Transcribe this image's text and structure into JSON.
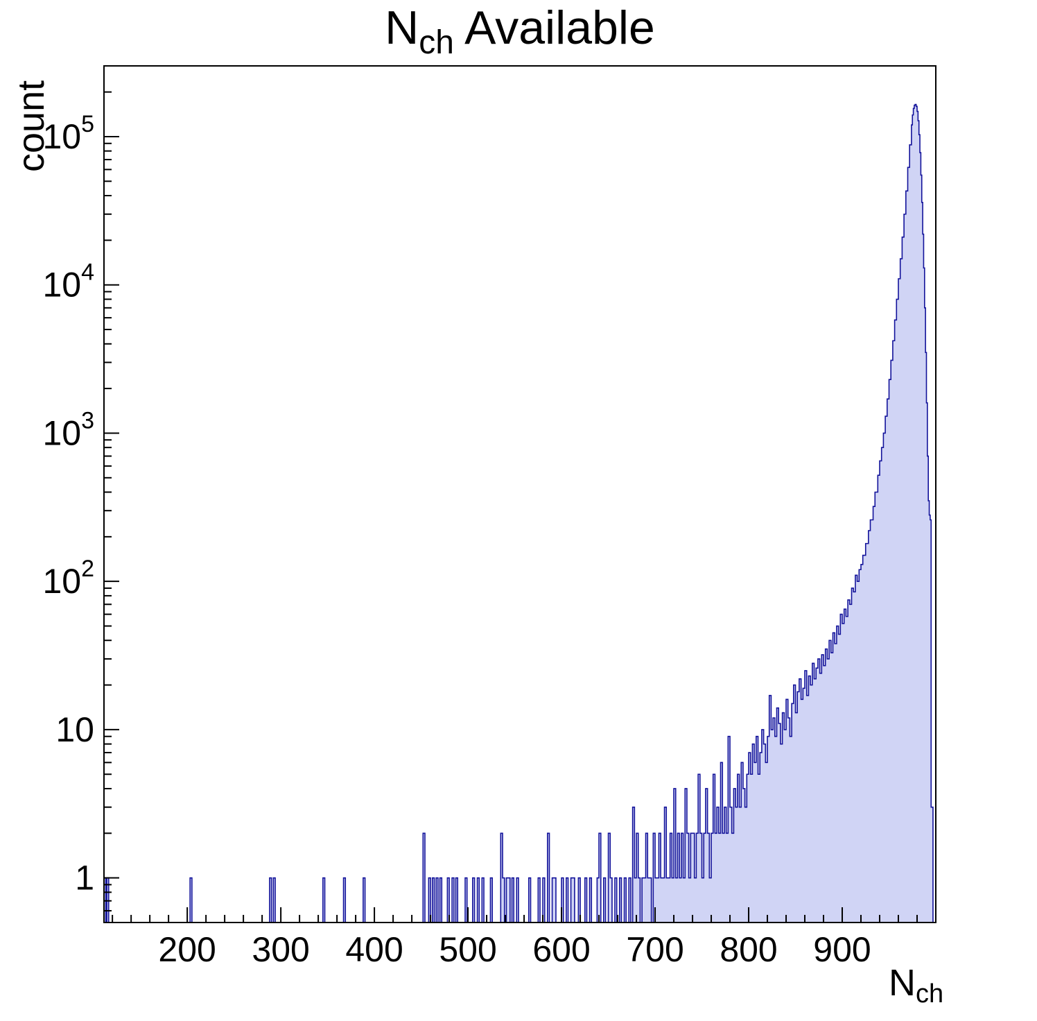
{
  "title": {
    "main": "N",
    "sub": "ch",
    "rest": " Available"
  },
  "axis_labels": {
    "y": "count",
    "x_main": "N",
    "x_sub": "ch"
  },
  "colors": {
    "fill": "#d0d4f5",
    "line": "#12129a",
    "axis": "#000000",
    "background": "#ffffff"
  },
  "chart_data": {
    "type": "bar",
    "title": "N_ch Available",
    "xlabel": "N_ch",
    "ylabel": "count",
    "x_range": [
      111,
      1000
    ],
    "y_range": [
      0.5,
      300000
    ],
    "y_scale": "log",
    "grid": false,
    "legend": "none",
    "x_major_ticks": [
      200,
      300,
      400,
      500,
      600,
      700,
      800,
      900
    ],
    "x_minor_step": 20,
    "y_major_ticks": [
      {
        "value": 1,
        "label": "1"
      },
      {
        "value": 10,
        "label": "10"
      },
      {
        "value": 100,
        "label": "10",
        "exp": "2"
      },
      {
        "value": 1000,
        "label": "10",
        "exp": "3"
      },
      {
        "value": 10000,
        "label": "10",
        "exp": "4"
      },
      {
        "value": 100000,
        "label": "10",
        "exp": "5"
      }
    ],
    "peak": {
      "x": 978,
      "count": 165000
    },
    "bins": [
      [
        111,
        1
      ],
      [
        113,
        0
      ],
      [
        114,
        1
      ],
      [
        116,
        0
      ],
      [
        203,
        1
      ],
      [
        205,
        0
      ],
      [
        288,
        1
      ],
      [
        290,
        0
      ],
      [
        292,
        1
      ],
      [
        294,
        0
      ],
      [
        345,
        1
      ],
      [
        347,
        0
      ],
      [
        367,
        1
      ],
      [
        369,
        0
      ],
      [
        388,
        1
      ],
      [
        390,
        0
      ],
      [
        452,
        2
      ],
      [
        454,
        0
      ],
      [
        458,
        1
      ],
      [
        460,
        0
      ],
      [
        462,
        1
      ],
      [
        464,
        0
      ],
      [
        466,
        1
      ],
      [
        468,
        0
      ],
      [
        470,
        1
      ],
      [
        472,
        0
      ],
      [
        478,
        1
      ],
      [
        480,
        0
      ],
      [
        483,
        1
      ],
      [
        485,
        0
      ],
      [
        487,
        1
      ],
      [
        489,
        0
      ],
      [
        497,
        1
      ],
      [
        499,
        0
      ],
      [
        505,
        1
      ],
      [
        507,
        0
      ],
      [
        510,
        1
      ],
      [
        512,
        0
      ],
      [
        515,
        1
      ],
      [
        517,
        0
      ],
      [
        524,
        1
      ],
      [
        526,
        0
      ],
      [
        535,
        2
      ],
      [
        537,
        1
      ],
      [
        539,
        0
      ],
      [
        541,
        1
      ],
      [
        543,
        1
      ],
      [
        545,
        0
      ],
      [
        547,
        1
      ],
      [
        549,
        0
      ],
      [
        552,
        1
      ],
      [
        554,
        0
      ],
      [
        565,
        1
      ],
      [
        567,
        0
      ],
      [
        575,
        1
      ],
      [
        577,
        0
      ],
      [
        580,
        1
      ],
      [
        582,
        0
      ],
      [
        585,
        2
      ],
      [
        587,
        0
      ],
      [
        590,
        1
      ],
      [
        592,
        1
      ],
      [
        594,
        0
      ],
      [
        600,
        1
      ],
      [
        602,
        0
      ],
      [
        605,
        1
      ],
      [
        607,
        0
      ],
      [
        610,
        1
      ],
      [
        612,
        1
      ],
      [
        614,
        0
      ],
      [
        618,
        1
      ],
      [
        620,
        0
      ],
      [
        625,
        1
      ],
      [
        627,
        0
      ],
      [
        630,
        1
      ],
      [
        632,
        0
      ],
      [
        638,
        1
      ],
      [
        640,
        2
      ],
      [
        642,
        0
      ],
      [
        645,
        1
      ],
      [
        647,
        0
      ],
      [
        650,
        2
      ],
      [
        652,
        1
      ],
      [
        654,
        0
      ],
      [
        657,
        1
      ],
      [
        659,
        0
      ],
      [
        662,
        1
      ],
      [
        664,
        0
      ],
      [
        667,
        1
      ],
      [
        669,
        0
      ],
      [
        672,
        1
      ],
      [
        674,
        0
      ],
      [
        676,
        3
      ],
      [
        678,
        1
      ],
      [
        680,
        2
      ],
      [
        682,
        1
      ],
      [
        684,
        0
      ],
      [
        686,
        1
      ],
      [
        688,
        1
      ],
      [
        690,
        2
      ],
      [
        692,
        1
      ],
      [
        694,
        1
      ],
      [
        696,
        0
      ],
      [
        698,
        2
      ],
      [
        700,
        1
      ],
      [
        702,
        1
      ],
      [
        704,
        2
      ],
      [
        706,
        1
      ],
      [
        708,
        1
      ],
      [
        710,
        3
      ],
      [
        712,
        1
      ],
      [
        714,
        1
      ],
      [
        716,
        2
      ],
      [
        718,
        1
      ],
      [
        720,
        4
      ],
      [
        722,
        1
      ],
      [
        724,
        2
      ],
      [
        726,
        1
      ],
      [
        728,
        2
      ],
      [
        730,
        1
      ],
      [
        732,
        4
      ],
      [
        734,
        2
      ],
      [
        736,
        1
      ],
      [
        738,
        2
      ],
      [
        740,
        2
      ],
      [
        742,
        1
      ],
      [
        744,
        2
      ],
      [
        746,
        5
      ],
      [
        748,
        2
      ],
      [
        750,
        1
      ],
      [
        752,
        2
      ],
      [
        754,
        4
      ],
      [
        756,
        2
      ],
      [
        758,
        1
      ],
      [
        760,
        2
      ],
      [
        762,
        5
      ],
      [
        764,
        2
      ],
      [
        766,
        3
      ],
      [
        768,
        2
      ],
      [
        770,
        6
      ],
      [
        772,
        2
      ],
      [
        774,
        3
      ],
      [
        776,
        2
      ],
      [
        778,
        9
      ],
      [
        780,
        3
      ],
      [
        782,
        2
      ],
      [
        784,
        4
      ],
      [
        786,
        3
      ],
      [
        788,
        5
      ],
      [
        790,
        3
      ],
      [
        792,
        6
      ],
      [
        794,
        4
      ],
      [
        796,
        3
      ],
      [
        798,
        5
      ],
      [
        800,
        7
      ],
      [
        802,
        5
      ],
      [
        804,
        8
      ],
      [
        806,
        6
      ],
      [
        808,
        9
      ],
      [
        810,
        5
      ],
      [
        812,
        7
      ],
      [
        814,
        10
      ],
      [
        816,
        8
      ],
      [
        818,
        6
      ],
      [
        820,
        9
      ],
      [
        822,
        17
      ],
      [
        824,
        10
      ],
      [
        826,
        12
      ],
      [
        828,
        9
      ],
      [
        830,
        14
      ],
      [
        832,
        11
      ],
      [
        834,
        8
      ],
      [
        836,
        13
      ],
      [
        838,
        10
      ],
      [
        840,
        16
      ],
      [
        842,
        12
      ],
      [
        844,
        9
      ],
      [
        846,
        15
      ],
      [
        848,
        20
      ],
      [
        850,
        13
      ],
      [
        852,
        18
      ],
      [
        854,
        22
      ],
      [
        856,
        16
      ],
      [
        858,
        19
      ],
      [
        860,
        25
      ],
      [
        862,
        17
      ],
      [
        864,
        23
      ],
      [
        866,
        20
      ],
      [
        868,
        28
      ],
      [
        870,
        22
      ],
      [
        872,
        26
      ],
      [
        874,
        30
      ],
      [
        876,
        24
      ],
      [
        878,
        32
      ],
      [
        880,
        27
      ],
      [
        882,
        35
      ],
      [
        884,
        30
      ],
      [
        886,
        40
      ],
      [
        888,
        33
      ],
      [
        890,
        45
      ],
      [
        892,
        38
      ],
      [
        894,
        50
      ],
      [
        896,
        44
      ],
      [
        898,
        60
      ],
      [
        900,
        52
      ],
      [
        902,
        65
      ],
      [
        904,
        58
      ],
      [
        906,
        75
      ],
      [
        908,
        70
      ],
      [
        910,
        90
      ],
      [
        912,
        85
      ],
      [
        914,
        110
      ],
      [
        916,
        100
      ],
      [
        918,
        120
      ],
      [
        920,
        130
      ],
      [
        922,
        150
      ],
      [
        925,
        180
      ],
      [
        928,
        220
      ],
      [
        930,
        260
      ],
      [
        933,
        320
      ],
      [
        935,
        400
      ],
      [
        938,
        520
      ],
      [
        940,
        650
      ],
      [
        942,
        800
      ],
      [
        944,
        1000
      ],
      [
        946,
        1300
      ],
      [
        948,
        1700
      ],
      [
        950,
        2300
      ],
      [
        952,
        3100
      ],
      [
        954,
        4200
      ],
      [
        956,
        5800
      ],
      [
        958,
        8000
      ],
      [
        960,
        11000
      ],
      [
        962,
        15000
      ],
      [
        964,
        21000
      ],
      [
        966,
        30000
      ],
      [
        968,
        43000
      ],
      [
        970,
        62000
      ],
      [
        972,
        88000
      ],
      [
        974,
        120000
      ],
      [
        975,
        140000
      ],
      [
        976,
        155000
      ],
      [
        977,
        163000
      ],
      [
        978,
        165000
      ],
      [
        979,
        160000
      ],
      [
        980,
        148000
      ],
      [
        981,
        128000
      ],
      [
        982,
        103000
      ],
      [
        983,
        78000
      ],
      [
        984,
        55000
      ],
      [
        985,
        36000
      ],
      [
        986,
        22000
      ],
      [
        987,
        13000
      ],
      [
        988,
        7000
      ],
      [
        989,
        3500
      ],
      [
        990,
        1600
      ],
      [
        991,
        700
      ],
      [
        992,
        350
      ],
      [
        993,
        280
      ],
      [
        994,
        260
      ],
      [
        995,
        3
      ],
      [
        997,
        0
      ]
    ]
  }
}
